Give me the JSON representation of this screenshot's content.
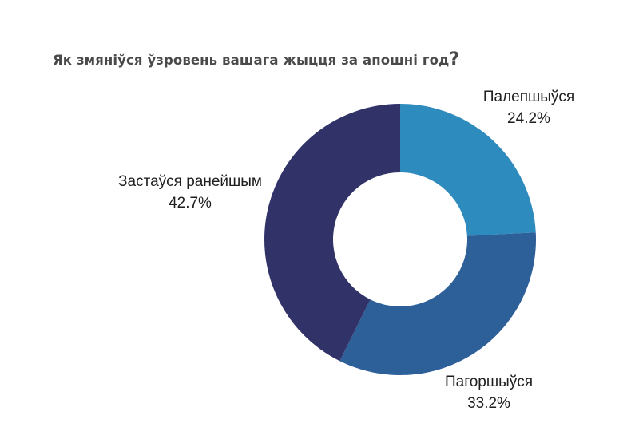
{
  "title": "Як змяніўся ўзровень вашага жыцця за апошні год",
  "title_mark": "?",
  "chart_data": {
    "type": "pie",
    "subtype": "donut",
    "title": "Як змяніўся ўзровень вашага жыцця за апошні год?",
    "categories": [
      "Палепшыўся",
      "Пагоршыўся",
      "Застаўся ранейшым"
    ],
    "values": [
      24.2,
      33.2,
      42.7
    ],
    "unit": "%",
    "colors": [
      "#2e8bbe",
      "#2d5f99",
      "#313268"
    ],
    "legend": "none (direct labels)",
    "start_angle": "12 o'clock, clockwise"
  },
  "labels": [
    {
      "name": "Палепшыўся",
      "value": "24.2%"
    },
    {
      "name": "Пагоршыўся",
      "value": "33.2%"
    },
    {
      "name": "Застаўся ранейшым",
      "value": "42.7%"
    }
  ]
}
